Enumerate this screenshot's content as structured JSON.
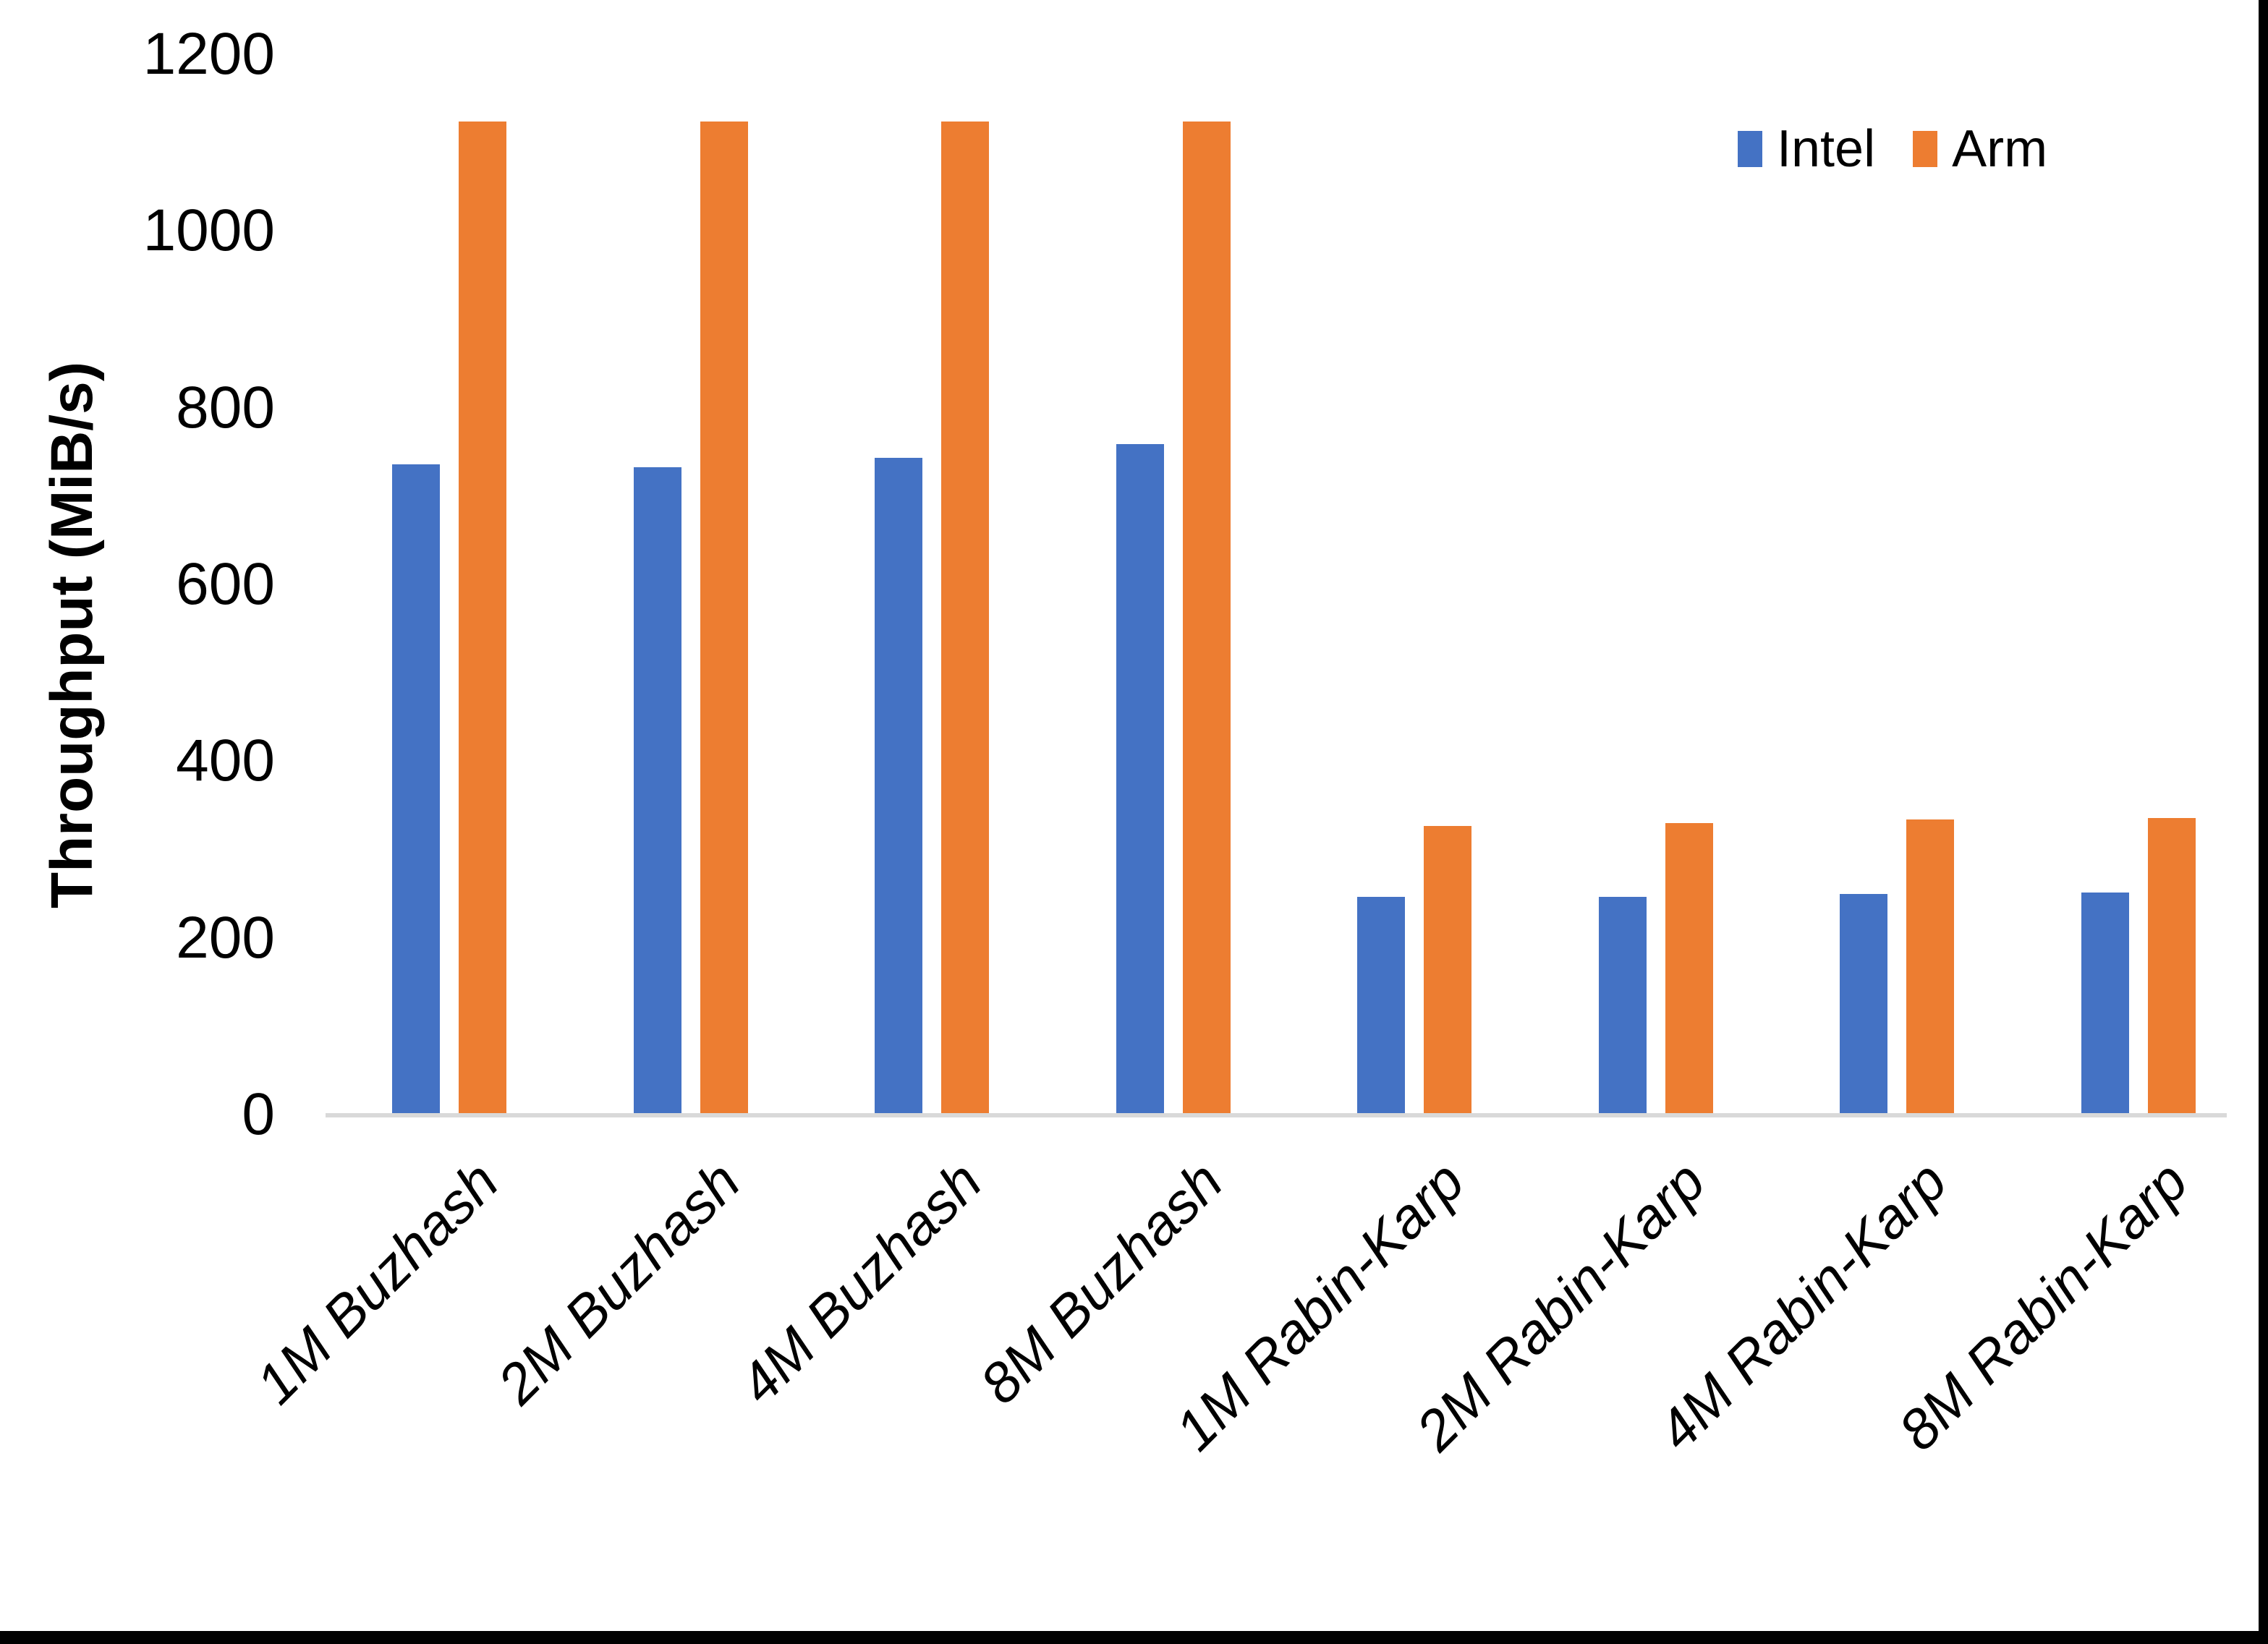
{
  "chart_data": {
    "type": "bar",
    "title": "",
    "ylabel": "Throughput (MiB/s)",
    "xlabel": "",
    "categories": [
      "1M Buzhash",
      "2M Buzhash",
      "4M Buzhash",
      "8M Buzhash",
      "1M Rabin-Karp",
      "2M Rabin-Karp",
      "4M Rabin-Karp",
      "8M Rabin-Karp"
    ],
    "series": [
      {
        "name": "Intel",
        "color": "#4472C4",
        "values": [
          736,
          733,
          743,
          759,
          246,
          246,
          250,
          251
        ]
      },
      {
        "name": "Arm",
        "color": "#ED7D31",
        "values": [
          1124,
          1124,
          1124,
          1124,
          327,
          330,
          334,
          336
        ]
      }
    ],
    "ylim": [
      0,
      1200
    ],
    "yticks": [
      0,
      200,
      400,
      600,
      800,
      1000,
      1200
    ],
    "grid": false,
    "legend_position": "top-right",
    "axis_line_color": "#D9D9D9",
    "category_label_style": "italic, rotated 45deg"
  }
}
